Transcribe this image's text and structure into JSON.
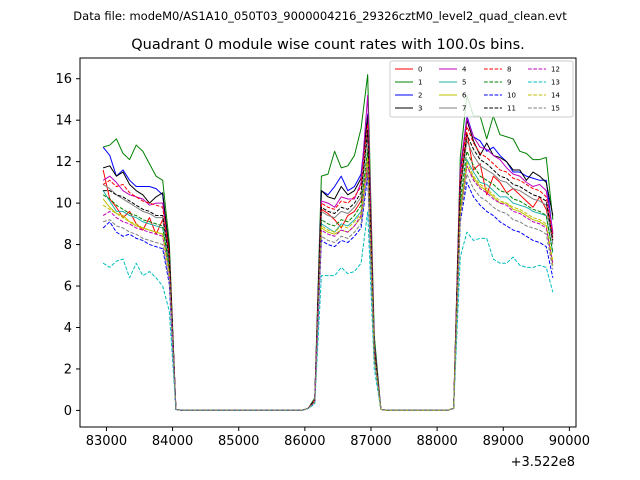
{
  "chart_data": {
    "type": "line",
    "suptitle": "Data file: modeM0/AS1A10_050T03_9000004216_29326cztM0_level2_quad_clean.evt",
    "title": "Quadrant 0 module wise count rates with 100.0s bins.",
    "xlabel": "",
    "ylabel": "",
    "x_offset_label": "+3.522e8",
    "xlim": [
      82600,
      90100
    ],
    "ylim": [
      -0.8,
      17.0
    ],
    "x_ticks": [
      83000,
      84000,
      85000,
      86000,
      87000,
      88000,
      89000,
      90000
    ],
    "y_ticks": [
      0,
      2,
      4,
      6,
      8,
      10,
      12,
      14,
      16
    ],
    "x_tick_labels": [
      "83000",
      "84000",
      "85000",
      "86000",
      "87000",
      "88000",
      "89000",
      "90000"
    ],
    "y_tick_labels": [
      "0",
      "2",
      "4",
      "6",
      "8",
      "10",
      "12",
      "14",
      "16"
    ],
    "legend_position": "top-right",
    "x": [
      82950,
      83050,
      83150,
      83250,
      83350,
      83450,
      83550,
      83650,
      83750,
      83850,
      83950,
      84050,
      84150,
      84250,
      84350,
      84450,
      84550,
      84650,
      84750,
      84850,
      84950,
      85050,
      85150,
      85250,
      85350,
      85450,
      85550,
      85650,
      85750,
      85850,
      85950,
      86050,
      86150,
      86250,
      86350,
      86450,
      86550,
      86650,
      86750,
      86850,
      86950,
      87050,
      87150,
      87250,
      87350,
      87450,
      87550,
      87650,
      87750,
      87850,
      87950,
      88050,
      88150,
      88250,
      88350,
      88450,
      88550,
      88650,
      88750,
      88850,
      88950,
      89050,
      89150,
      89250,
      89350,
      89450,
      89550,
      89650,
      89750
    ],
    "series": [
      {
        "name": "0",
        "color": "#ff0000",
        "dash": "solid",
        "values": [
          11.6,
          10.2,
          9.8,
          9.3,
          9.6,
          9.0,
          8.7,
          9.3,
          8.5,
          9.2,
          7.5,
          0.05,
          0,
          0,
          0,
          0,
          0,
          0,
          0,
          0,
          0,
          0,
          0,
          0,
          0,
          0,
          0,
          0,
          0,
          0,
          0,
          0.1,
          0.5,
          9.7,
          9.5,
          9.2,
          8.8,
          9.4,
          9.6,
          10.1,
          11.6,
          3.0,
          0.05,
          0,
          0,
          0,
          0,
          0,
          0,
          0,
          0,
          0,
          0,
          0.1,
          10.7,
          13.4,
          11.6,
          11.9,
          10.4,
          11.3,
          11.0,
          10.5,
          10.7,
          10.4,
          10.1,
          9.8,
          10.3,
          9.7,
          8.3
        ]
      },
      {
        "name": "1",
        "color": "#008000",
        "dash": "solid",
        "values": [
          12.7,
          12.8,
          13.1,
          12.4,
          12.1,
          12.8,
          12.5,
          11.9,
          11.3,
          11.1,
          8.1,
          0.05,
          0,
          0,
          0,
          0,
          0,
          0,
          0,
          0,
          0,
          0,
          0,
          0,
          0,
          0,
          0,
          0,
          0,
          0,
          0,
          0.1,
          0.6,
          11.3,
          11.4,
          12.5,
          11.7,
          11.8,
          12.3,
          13.6,
          16.2,
          3.6,
          0.05,
          0,
          0,
          0,
          0,
          0,
          0,
          0,
          0,
          0,
          0,
          0.1,
          12.2,
          15.2,
          14.2,
          14.2,
          13.1,
          14.2,
          13.3,
          13.2,
          13.1,
          12.5,
          12.4,
          12.1,
          12.1,
          12.2,
          9.2
        ]
      },
      {
        "name": "2",
        "color": "#0000ff",
        "dash": "solid",
        "values": [
          12.7,
          12.3,
          11.3,
          11.6,
          11.1,
          10.8,
          10.8,
          10.8,
          10.7,
          10.4,
          7.6,
          0.05,
          0,
          0,
          0,
          0,
          0,
          0,
          0,
          0,
          0,
          0,
          0,
          0,
          0,
          0,
          0,
          0,
          0,
          0,
          0,
          0.1,
          0.5,
          10.6,
          10.4,
          10.8,
          11.3,
          10.6,
          10.8,
          11.4,
          14.3,
          3.2,
          0.05,
          0,
          0,
          0,
          0,
          0,
          0,
          0,
          0,
          0,
          0,
          0.1,
          11.4,
          14.2,
          13.2,
          13.0,
          12.5,
          12.7,
          12.3,
          12.0,
          11.5,
          11.5,
          11.3,
          11.2,
          11.1,
          11.1,
          8.5
        ]
      },
      {
        "name": "3",
        "color": "#000000",
        "dash": "solid",
        "values": [
          11.7,
          11.8,
          11.3,
          11.5,
          10.9,
          10.6,
          10.4,
          10.0,
          10.3,
          10.5,
          7.7,
          0.05,
          0,
          0,
          0,
          0,
          0,
          0,
          0,
          0,
          0,
          0,
          0,
          0,
          0,
          0,
          0,
          0,
          0,
          0,
          0,
          0.1,
          0.5,
          10.6,
          10.3,
          10.2,
          10.8,
          10.4,
          10.6,
          11.2,
          14.2,
          3.1,
          0.05,
          0,
          0,
          0,
          0,
          0,
          0,
          0,
          0,
          0,
          0,
          0.1,
          11.6,
          14.0,
          13.0,
          12.3,
          12.9,
          12.3,
          12.2,
          12.0,
          11.6,
          11.6,
          11.1,
          11.5,
          11.3,
          11.0,
          9.4
        ]
      },
      {
        "name": "4",
        "color": "#bf00bf",
        "dash": "solid",
        "values": [
          11.1,
          11.3,
          11.0,
          10.6,
          10.4,
          10.3,
          10.2,
          9.9,
          10.0,
          10.0,
          7.4,
          0.05,
          0,
          0,
          0,
          0,
          0,
          0,
          0,
          0,
          0,
          0,
          0,
          0,
          0,
          0,
          0,
          0,
          0,
          0,
          0,
          0.1,
          0.5,
          10.1,
          10.0,
          9.8,
          10.3,
          10.2,
          10.2,
          11.0,
          15.2,
          3.1,
          0.05,
          0,
          0,
          0,
          0,
          0,
          0,
          0,
          0,
          0,
          0,
          0.1,
          11.7,
          14.1,
          13.2,
          12.7,
          12.6,
          12.3,
          12.1,
          11.7,
          11.4,
          11.3,
          11.0,
          10.8,
          10.9,
          10.6,
          8.6
        ]
      },
      {
        "name": "5",
        "color": "#20b2aa",
        "dash": "solid",
        "values": [
          10.6,
          10.1,
          9.6,
          9.6,
          9.4,
          9.3,
          9.1,
          9.0,
          8.9,
          8.8,
          6.9,
          0.05,
          0,
          0,
          0,
          0,
          0,
          0,
          0,
          0,
          0,
          0,
          0,
          0,
          0,
          0,
          0,
          0,
          0,
          0,
          0,
          0.1,
          0.4,
          9.0,
          8.8,
          8.6,
          9.0,
          8.9,
          9.2,
          9.6,
          12.4,
          2.7,
          0.05,
          0,
          0,
          0,
          0,
          0,
          0,
          0,
          0,
          0,
          0,
          0.1,
          9.8,
          12.1,
          11.5,
          11.0,
          10.9,
          10.6,
          10.3,
          10.3,
          10.0,
          9.9,
          9.8,
          9.6,
          9.5,
          9.4,
          7.6
        ]
      },
      {
        "name": "6",
        "color": "#bfbf00",
        "dash": "solid",
        "values": [
          10.2,
          9.8,
          9.5,
          9.4,
          9.1,
          8.9,
          8.8,
          8.7,
          8.6,
          8.5,
          6.6,
          0.05,
          0,
          0,
          0,
          0,
          0,
          0,
          0,
          0,
          0,
          0,
          0,
          0,
          0,
          0,
          0,
          0,
          0,
          0,
          0,
          0.1,
          0.4,
          8.8,
          8.6,
          8.5,
          8.7,
          8.6,
          8.9,
          9.3,
          12.2,
          2.6,
          0.05,
          0,
          0,
          0,
          0,
          0,
          0,
          0,
          0,
          0,
          0,
          0.1,
          9.5,
          11.8,
          11.2,
          10.8,
          10.6,
          10.3,
          10.0,
          10.0,
          9.7,
          9.6,
          9.4,
          9.2,
          9.1,
          8.9,
          7.0
        ]
      },
      {
        "name": "7",
        "color": "#808080",
        "dash": "solid",
        "values": [
          10.9,
          10.7,
          10.4,
          10.2,
          10.0,
          9.8,
          9.6,
          9.5,
          9.3,
          9.3,
          7.2,
          0.05,
          0,
          0,
          0,
          0,
          0,
          0,
          0,
          0,
          0,
          0,
          0,
          0,
          0,
          0,
          0,
          0,
          0,
          0,
          0,
          0.1,
          0.5,
          9.6,
          9.4,
          9.3,
          9.6,
          9.5,
          9.8,
          10.3,
          13.3,
          2.9,
          0.05,
          0,
          0,
          0,
          0,
          0,
          0,
          0,
          0,
          0,
          0,
          0.1,
          10.6,
          13.0,
          12.3,
          11.8,
          11.6,
          11.4,
          11.1,
          11.0,
          10.7,
          10.6,
          10.4,
          10.2,
          10.1,
          9.9,
          8.0
        ]
      },
      {
        "name": "8",
        "color": "#ff0000",
        "dash": "dashed",
        "values": [
          10.9,
          11.1,
          10.8,
          10.9,
          10.5,
          10.3,
          10.1,
          10.0,
          9.9,
          9.8,
          7.5,
          0.05,
          0,
          0,
          0,
          0,
          0,
          0,
          0,
          0,
          0,
          0,
          0,
          0,
          0,
          0,
          0,
          0,
          0,
          0,
          0,
          0.1,
          0.5,
          10.0,
          9.8,
          9.7,
          10.1,
          10.0,
          10.3,
          10.8,
          13.8,
          3.0,
          0.05,
          0,
          0,
          0,
          0,
          0,
          0,
          0,
          0,
          0,
          0,
          0.1,
          11.2,
          13.7,
          12.9,
          12.4,
          12.2,
          11.9,
          11.6,
          11.5,
          11.2,
          11.1,
          10.9,
          10.7,
          10.6,
          10.3,
          8.4
        ]
      },
      {
        "name": "9",
        "color": "#008000",
        "dash": "dashed",
        "values": [
          10.4,
          10.2,
          9.9,
          9.7,
          9.5,
          9.4,
          9.2,
          9.1,
          9.0,
          8.9,
          6.9,
          0.05,
          0,
          0,
          0,
          0,
          0,
          0,
          0,
          0,
          0,
          0,
          0,
          0,
          0,
          0,
          0,
          0,
          0,
          0,
          0,
          0.1,
          0.4,
          9.2,
          9.0,
          8.9,
          9.2,
          9.1,
          9.4,
          9.9,
          12.6,
          2.8,
          0.05,
          0,
          0,
          0,
          0,
          0,
          0,
          0,
          0,
          0,
          0,
          0.1,
          10.1,
          12.5,
          11.8,
          11.3,
          11.1,
          10.9,
          10.6,
          10.5,
          10.2,
          10.1,
          9.9,
          9.7,
          9.6,
          9.4,
          7.6
        ]
      },
      {
        "name": "10",
        "color": "#0000ff",
        "dash": "dashed",
        "values": [
          8.8,
          9.1,
          8.6,
          8.4,
          8.5,
          8.3,
          8.2,
          8.0,
          7.9,
          7.8,
          6.1,
          0.05,
          0,
          0,
          0,
          0,
          0,
          0,
          0,
          0,
          0,
          0,
          0,
          0,
          0,
          0,
          0,
          0,
          0,
          0,
          0,
          0.1,
          0.4,
          8.2,
          8.0,
          7.9,
          8.2,
          8.1,
          8.4,
          8.8,
          11.3,
          2.5,
          0.05,
          0,
          0,
          0,
          0,
          0,
          0,
          0,
          0,
          0,
          0,
          0.1,
          9.1,
          11.0,
          10.3,
          9.9,
          9.6,
          9.4,
          9.1,
          8.9,
          8.7,
          8.6,
          8.4,
          8.2,
          8.1,
          7.9,
          6.4
        ]
      },
      {
        "name": "11",
        "color": "#000000",
        "dash": "dashed",
        "values": [
          10.6,
          10.6,
          10.4,
          10.3,
          10.1,
          9.9,
          9.7,
          9.6,
          9.4,
          9.4,
          7.3,
          0.05,
          0,
          0,
          0,
          0,
          0,
          0,
          0,
          0,
          0,
          0,
          0,
          0,
          0,
          0,
          0,
          0,
          0,
          0,
          0,
          0.1,
          0.5,
          9.8,
          9.6,
          9.5,
          9.8,
          9.7,
          10.0,
          10.5,
          13.5,
          2.9,
          0.05,
          0,
          0,
          0,
          0,
          0,
          0,
          0,
          0,
          0,
          0,
          0.1,
          10.8,
          13.3,
          12.6,
          12.1,
          11.9,
          11.6,
          11.3,
          11.2,
          10.9,
          10.8,
          10.6,
          10.4,
          10.3,
          10.1,
          8.2
        ]
      },
      {
        "name": "12",
        "color": "#bf00bf",
        "dash": "dashed",
        "values": [
          9.4,
          9.6,
          9.3,
          9.1,
          9.0,
          8.8,
          8.7,
          8.6,
          8.5,
          8.4,
          6.6,
          0.05,
          0,
          0,
          0,
          0,
          0,
          0,
          0,
          0,
          0,
          0,
          0,
          0,
          0,
          0,
          0,
          0,
          0,
          0,
          0,
          0.1,
          0.4,
          8.7,
          8.5,
          8.4,
          8.7,
          8.6,
          8.9,
          9.4,
          12.0,
          2.6,
          0.05,
          0,
          0,
          0,
          0,
          0,
          0,
          0,
          0,
          0,
          0,
          0.1,
          9.6,
          11.8,
          11.1,
          10.7,
          10.5,
          10.2,
          10.0,
          9.9,
          9.6,
          9.5,
          9.3,
          9.1,
          9.0,
          8.8,
          7.1
        ]
      },
      {
        "name": "13",
        "color": "#00bfbf",
        "dash": "dashed",
        "values": [
          7.1,
          6.9,
          7.2,
          7.3,
          6.4,
          7.1,
          6.5,
          6.7,
          6.4,
          6.0,
          4.8,
          0.05,
          0,
          0,
          0,
          0,
          0,
          0,
          0,
          0,
          0,
          0,
          0,
          0,
          0,
          0,
          0,
          0,
          0,
          0,
          0,
          0.1,
          0.3,
          6.5,
          6.5,
          6.5,
          6.9,
          6.6,
          6.7,
          7.1,
          9.6,
          2.0,
          0.05,
          0,
          0,
          0,
          0,
          0,
          0,
          0,
          0,
          0,
          0,
          0.1,
          7.4,
          8.6,
          8.2,
          8.3,
          8.3,
          7.3,
          7.1,
          7.1,
          7.4,
          7.0,
          6.9,
          6.9,
          7.0,
          6.9,
          5.7
        ]
      },
      {
        "name": "14",
        "color": "#bfbf00",
        "dash": "dashed",
        "values": [
          9.9,
          9.7,
          9.5,
          9.3,
          9.1,
          9.0,
          8.8,
          8.7,
          8.6,
          8.5,
          6.6,
          0.05,
          0,
          0,
          0,
          0,
          0,
          0,
          0,
          0,
          0,
          0,
          0,
          0,
          0,
          0,
          0,
          0,
          0,
          0,
          0,
          0.1,
          0.4,
          8.9,
          8.7,
          8.6,
          8.9,
          8.8,
          9.1,
          9.5,
          12.2,
          2.6,
          0.05,
          0,
          0,
          0,
          0,
          0,
          0,
          0,
          0,
          0,
          0,
          0.1,
          9.7,
          12.0,
          11.3,
          10.9,
          10.7,
          10.4,
          10.1,
          10.0,
          9.8,
          9.7,
          9.5,
          9.3,
          9.2,
          9.0,
          7.2
        ]
      },
      {
        "name": "15",
        "color": "#808080",
        "dash": "dashed",
        "values": [
          9.1,
          9.2,
          8.9,
          8.8,
          8.6,
          8.5,
          8.3,
          8.2,
          8.1,
          8.0,
          6.3,
          0.05,
          0,
          0,
          0,
          0,
          0,
          0,
          0,
          0,
          0,
          0,
          0,
          0,
          0,
          0,
          0,
          0,
          0,
          0,
          0,
          0.1,
          0.4,
          8.4,
          8.2,
          8.1,
          8.4,
          8.3,
          8.6,
          9.0,
          11.6,
          2.5,
          0.05,
          0,
          0,
          0,
          0,
          0,
          0,
          0,
          0,
          0,
          0,
          0.1,
          9.3,
          11.4,
          10.7,
          10.3,
          10.1,
          9.8,
          9.6,
          9.5,
          9.2,
          9.1,
          8.9,
          8.8,
          8.7,
          8.5,
          6.8
        ]
      }
    ]
  }
}
